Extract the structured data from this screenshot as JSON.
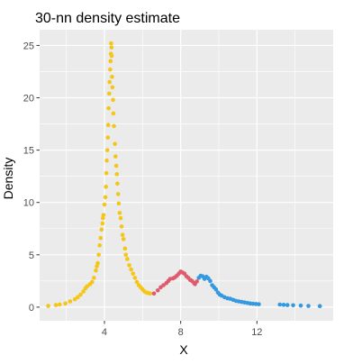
{
  "chart_data": {
    "type": "scatter",
    "title": "30-nn density estimate",
    "xlabel": "X",
    "ylabel": "Density",
    "xlim": [
      0.6,
      16.0
    ],
    "ylim": [
      -1.3,
      26.5
    ],
    "x_ticks": [
      4,
      8,
      12
    ],
    "x_tick_labels": [
      "4",
      "8",
      "12"
    ],
    "y_ticks": [
      0,
      5,
      10,
      15,
      20,
      25
    ],
    "y_tick_labels": [
      "0",
      "5",
      "10",
      "15",
      "20",
      "25"
    ],
    "grid": true,
    "legend": "none",
    "panel_color": "#ebebeb",
    "grid_color": "#ffffff",
    "series": [
      {
        "color": "#f5c518",
        "points": [
          [
            1.05,
            0.12
          ],
          [
            1.45,
            0.2
          ],
          [
            1.65,
            0.25
          ],
          [
            1.95,
            0.35
          ],
          [
            2.2,
            0.55
          ],
          [
            2.45,
            0.75
          ],
          [
            2.6,
            0.95
          ],
          [
            2.75,
            1.2
          ],
          [
            2.9,
            1.5
          ],
          [
            3.0,
            1.8
          ],
          [
            3.1,
            2.0
          ],
          [
            3.25,
            2.2
          ],
          [
            3.35,
            2.4
          ],
          [
            3.45,
            2.8
          ],
          [
            3.55,
            3.5
          ],
          [
            3.6,
            3.9
          ],
          [
            3.65,
            4.2
          ],
          [
            3.7,
            5.0
          ],
          [
            3.75,
            5.9
          ],
          [
            3.8,
            6.6
          ],
          [
            3.85,
            7.4
          ],
          [
            3.9,
            8.0
          ],
          [
            3.92,
            8.5
          ],
          [
            3.95,
            8.8
          ],
          [
            4.0,
            9.8
          ],
          [
            4.05,
            10.5
          ],
          [
            4.08,
            11.5
          ],
          [
            4.1,
            12.8
          ],
          [
            4.12,
            14.0
          ],
          [
            4.15,
            15.0
          ],
          [
            4.18,
            16.2
          ],
          [
            4.2,
            17.4
          ],
          [
            4.22,
            19.0
          ],
          [
            4.25,
            20.4
          ],
          [
            4.27,
            21.5
          ],
          [
            4.3,
            22.7
          ],
          [
            4.32,
            23.5
          ],
          [
            4.34,
            24.2
          ],
          [
            4.35,
            25.2
          ],
          [
            4.37,
            24.8
          ],
          [
            4.38,
            24.0
          ],
          [
            4.4,
            22.0
          ],
          [
            4.42,
            21.0
          ],
          [
            4.45,
            19.8
          ],
          [
            4.47,
            18.5
          ],
          [
            4.5,
            17.3
          ],
          [
            4.55,
            15.6
          ],
          [
            4.58,
            14.4
          ],
          [
            4.62,
            13.5
          ],
          [
            4.65,
            12.7
          ],
          [
            4.68,
            11.8
          ],
          [
            4.72,
            10.8
          ],
          [
            4.75,
            9.9
          ],
          [
            4.8,
            9.0
          ],
          [
            4.85,
            8.5
          ],
          [
            4.9,
            7.7
          ],
          [
            4.95,
            6.9
          ],
          [
            5.0,
            6.5
          ],
          [
            5.08,
            5.6
          ],
          [
            5.12,
            5.0
          ],
          [
            5.2,
            4.6
          ],
          [
            5.3,
            4.0
          ],
          [
            5.4,
            3.6
          ],
          [
            5.5,
            3.2
          ],
          [
            5.6,
            2.8
          ],
          [
            5.7,
            2.4
          ],
          [
            5.8,
            2.1
          ],
          [
            5.9,
            1.9
          ],
          [
            6.0,
            1.7
          ],
          [
            6.1,
            1.5
          ],
          [
            6.2,
            1.4
          ],
          [
            6.3,
            1.35
          ],
          [
            6.4,
            1.3
          ]
        ]
      },
      {
        "color": "#e05a6e",
        "points": [
          [
            6.6,
            1.3
          ],
          [
            6.8,
            1.6
          ],
          [
            6.95,
            1.9
          ],
          [
            7.1,
            2.1
          ],
          [
            7.25,
            2.3
          ],
          [
            7.35,
            2.5
          ],
          [
            7.45,
            2.7
          ],
          [
            7.6,
            2.75
          ],
          [
            7.7,
            2.85
          ],
          [
            7.8,
            3.0
          ],
          [
            7.9,
            3.2
          ],
          [
            8.0,
            3.4
          ],
          [
            8.1,
            3.3
          ],
          [
            8.2,
            3.2
          ],
          [
            8.3,
            2.95
          ],
          [
            8.4,
            2.8
          ],
          [
            8.5,
            2.6
          ],
          [
            8.6,
            2.5
          ],
          [
            8.7,
            2.3
          ],
          [
            8.75,
            2.2
          ],
          [
            8.85,
            2.45
          ]
        ]
      },
      {
        "color": "#3499e0",
        "points": [
          [
            8.95,
            2.8
          ],
          [
            9.05,
            3.0
          ],
          [
            9.15,
            2.95
          ],
          [
            9.25,
            2.7
          ],
          [
            9.35,
            2.9
          ],
          [
            9.45,
            2.75
          ],
          [
            9.55,
            2.5
          ],
          [
            9.65,
            2.1
          ],
          [
            9.75,
            1.9
          ],
          [
            9.85,
            1.7
          ],
          [
            9.95,
            1.4
          ],
          [
            10.05,
            1.2
          ],
          [
            10.15,
            1.1
          ],
          [
            10.3,
            0.95
          ],
          [
            10.45,
            0.85
          ],
          [
            10.6,
            0.8
          ],
          [
            10.75,
            0.7
          ],
          [
            10.9,
            0.6
          ],
          [
            11.05,
            0.55
          ],
          [
            11.2,
            0.5
          ],
          [
            11.35,
            0.45
          ],
          [
            11.5,
            0.4
          ],
          [
            11.65,
            0.35
          ],
          [
            11.8,
            0.32
          ],
          [
            11.95,
            0.3
          ],
          [
            12.1,
            0.28
          ],
          [
            13.2,
            0.25
          ],
          [
            13.4,
            0.22
          ],
          [
            13.6,
            0.2
          ],
          [
            13.9,
            0.18
          ],
          [
            14.3,
            0.15
          ],
          [
            14.7,
            0.12
          ],
          [
            15.3,
            0.1
          ]
        ]
      }
    ]
  }
}
